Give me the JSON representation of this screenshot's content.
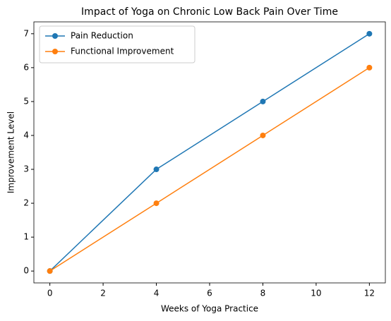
{
  "chart_data": {
    "type": "line",
    "title": "Impact of Yoga on Chronic Low Back Pain Over Time",
    "xlabel": "Weeks of Yoga Practice",
    "ylabel": "Improvement Level",
    "x": [
      0,
      4,
      8,
      12
    ],
    "series": [
      {
        "name": "Pain Reduction",
        "color": "#1f77b4",
        "values": [
          0,
          3,
          5,
          7
        ]
      },
      {
        "name": "Functional Improvement",
        "color": "#ff7f0e",
        "values": [
          0,
          2,
          4,
          6
        ]
      }
    ],
    "xlim": [
      -0.6,
      12.6
    ],
    "xticks": [
      0,
      2,
      4,
      6,
      8,
      10,
      12
    ],
    "ylim": [
      -0.35,
      7.35
    ],
    "yticks": [
      0,
      1,
      2,
      3,
      4,
      5,
      6,
      7
    ],
    "grid": false,
    "legend": "upper left"
  }
}
